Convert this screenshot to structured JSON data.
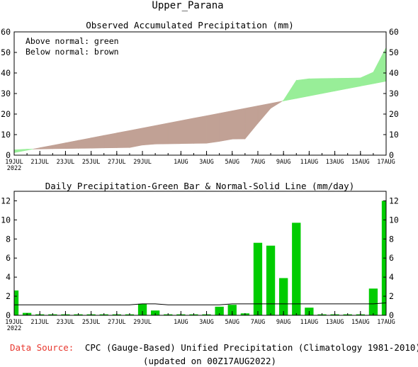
{
  "station": "Upper_Parana",
  "colors": {
    "above": "#98ee98",
    "below": "#c1a195",
    "bar": "#00cc00",
    "source_label": "#e8382f",
    "text": "#000000"
  },
  "footer": {
    "source_label": "Data Source:",
    "source_text": "CPC (Gauge-Based) Unified Precipitation (Climatology 1981-2010)",
    "updated": "(updated on 00Z17AUG2022)"
  },
  "chart_data": [
    {
      "type": "area",
      "title": "Observed Accumulated Precipitation (mm)",
      "annotations": [
        "Above normal: green",
        "Below normal: brown"
      ],
      "ylim": [
        0,
        60
      ],
      "yticks": [
        0,
        10,
        20,
        30,
        40,
        50,
        60
      ],
      "x_tick_labels": [
        "19JUL",
        "21JUL",
        "23JUL",
        "25JUL",
        "27JUL",
        "29JUL",
        "1AUG",
        "3AUG",
        "5AUG",
        "7AUG",
        "9AUG",
        "11AUG",
        "13AUG",
        "15AUG",
        "17AUG"
      ],
      "x_tick_days": [
        0,
        2,
        4,
        6,
        8,
        10,
        13,
        15,
        17,
        19,
        21,
        23,
        25,
        27,
        29
      ],
      "x_year_label": "2022",
      "x_range_days": [
        0,
        29
      ],
      "series": [
        {
          "role": "observed",
          "x_days": [
            0,
            1,
            2,
            3,
            4,
            5,
            6,
            7,
            8,
            9,
            10,
            11,
            12,
            13,
            14,
            15,
            16,
            17,
            18,
            19,
            20,
            21,
            22,
            23,
            24,
            25,
            26,
            27,
            28,
            29
          ],
          "values": [
            2.6,
            2.9,
            3.0,
            3.1,
            3.2,
            3.3,
            3.4,
            3.5,
            3.6,
            3.7,
            4.9,
            5.4,
            5.5,
            5.6,
            5.7,
            5.8,
            6.7,
            7.8,
            7.9,
            15.5,
            22.8,
            26.7,
            36.4,
            37.2,
            37.3,
            37.4,
            37.5,
            37.6,
            40.4,
            52.4
          ]
        },
        {
          "role": "normal",
          "x_days": [
            0,
            29
          ],
          "values": [
            1.2,
            36.0
          ]
        }
      ]
    },
    {
      "type": "bar",
      "title": "Daily Precipitation-Green Bar & Normal-Solid Line (mm/day)",
      "ylim": [
        0,
        13
      ],
      "yticks": [
        0,
        2,
        4,
        6,
        8,
        10,
        12
      ],
      "x_tick_labels": [
        "19JUL",
        "21JUL",
        "23JUL",
        "25JUL",
        "27JUL",
        "29JUL",
        "1AUG",
        "3AUG",
        "5AUG",
        "7AUG",
        "9AUG",
        "11AUG",
        "13AUG",
        "15AUG",
        "17AUG"
      ],
      "x_tick_days": [
        0,
        2,
        4,
        6,
        8,
        10,
        13,
        15,
        17,
        19,
        21,
        23,
        25,
        27,
        29
      ],
      "x_year_label": "2022",
      "x_range_days": [
        0,
        29
      ],
      "bar_days": [
        0,
        1,
        2,
        3,
        4,
        5,
        6,
        7,
        8,
        9,
        10,
        11,
        12,
        13,
        14,
        15,
        16,
        17,
        18,
        19,
        20,
        21,
        22,
        23,
        24,
        25,
        26,
        27,
        28,
        29
      ],
      "values": [
        2.6,
        0.25,
        0.1,
        0.1,
        0.1,
        0.1,
        0.1,
        0.1,
        0.1,
        0.1,
        1.2,
        0.5,
        0.1,
        0.1,
        0.1,
        0.1,
        0.9,
        1.1,
        0.2,
        7.6,
        7.3,
        3.9,
        9.7,
        0.8,
        0.1,
        0.1,
        0.1,
        0.1,
        2.8,
        12.0
      ],
      "normal_line": [
        1.1,
        1.1,
        1.1,
        1.1,
        1.1,
        1.1,
        1.1,
        1.1,
        1.1,
        1.1,
        1.2,
        1.2,
        1.1,
        1.1,
        1.1,
        1.1,
        1.1,
        1.2,
        1.2,
        1.2,
        1.2,
        1.2,
        1.2,
        1.2,
        1.2,
        1.2,
        1.2,
        1.2,
        1.2,
        1.3
      ]
    }
  ]
}
